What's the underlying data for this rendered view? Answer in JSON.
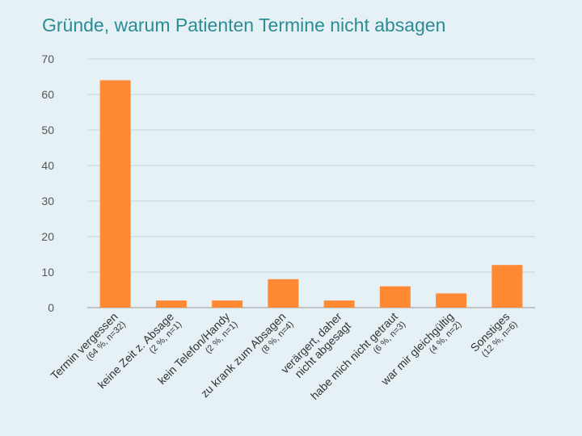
{
  "chart_data": {
    "type": "bar",
    "title": "Gründe, warum Patienten Termine nicht absagen",
    "xlabel": "",
    "ylabel": "",
    "ylim": [
      0,
      70
    ],
    "yticks": [
      0,
      10,
      20,
      30,
      40,
      50,
      60,
      70
    ],
    "grid": true,
    "legend": "none",
    "bar_color": "#ff8a33",
    "categories": [
      {
        "label": [
          "Termin vergessen"
        ],
        "sub": "(64 %, n=32)",
        "value": 64
      },
      {
        "label": [
          "keine Zeit z. Absage"
        ],
        "sub": "(2 %, n=1)",
        "value": 2
      },
      {
        "label": [
          "kein Telefon/Handy"
        ],
        "sub": "(2 %, n=1)",
        "value": 2
      },
      {
        "label": [
          "zu krank zum Absagen"
        ],
        "sub": "(8 %, n=4)",
        "value": 8
      },
      {
        "label": [
          "verärgert, daher",
          "nicht abgesagt"
        ],
        "sub": "",
        "value": 2
      },
      {
        "label": [
          "habe mich nicht getraut"
        ],
        "sub": "(6 %, n=3)",
        "value": 6
      },
      {
        "label": [
          "war mir gleichgültig"
        ],
        "sub": "(4 %, n=2)",
        "value": 4
      },
      {
        "label": [
          "Sonstiges"
        ],
        "sub": "(12 %, n=6)",
        "value": 12
      }
    ]
  }
}
